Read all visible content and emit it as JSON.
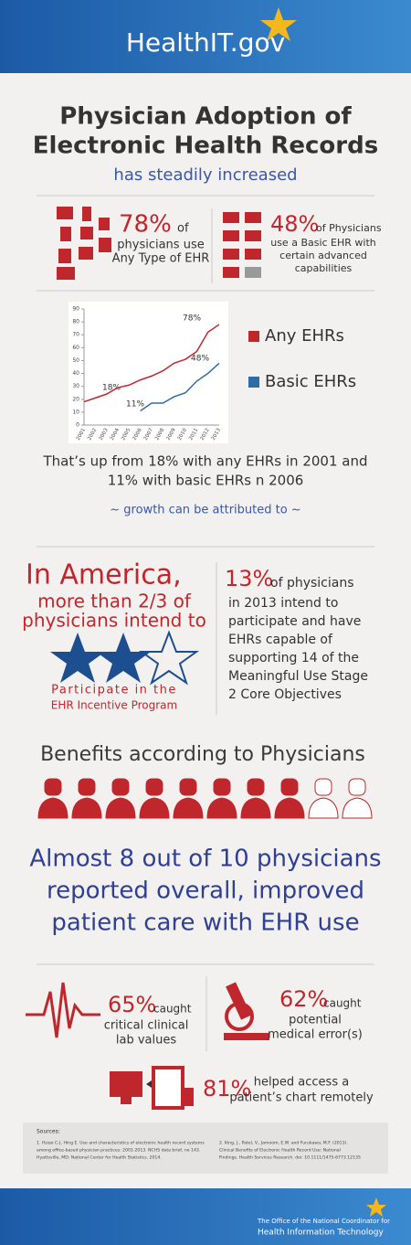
{
  "header": {
    "logo": "HealthIT.gov"
  },
  "title": {
    "lines": [
      "Physician Adoption of",
      "Electronic Health Records"
    ],
    "subtitle": "has steadily increased"
  },
  "stats_top": [
    {
      "percent": "78%",
      "lines": [
        "of",
        "physicians use",
        "Any Type of EHR"
      ]
    },
    {
      "percent": "48%",
      "lines": [
        "of  Physicians",
        "use a Basic EHR with",
        "certain advanced",
        "capabilities"
      ]
    }
  ],
  "chart": {
    "type": "line",
    "categories": [
      "2001",
      "2002",
      "2003",
      "2004",
      "2005",
      "2006",
      "2007",
      "2008",
      "2009",
      "2010",
      "2011",
      "2012",
      "2013"
    ],
    "series": [
      {
        "name": "Any EHRs",
        "color": "#c0272d",
        "values": [
          18,
          21,
          24,
          29,
          31,
          35,
          38,
          42,
          48,
          51,
          57,
          72,
          78
        ]
      },
      {
        "name": "Basic EHRs",
        "color": "#2e6da4",
        "values": [
          null,
          null,
          null,
          null,
          null,
          11,
          17,
          17,
          22,
          25,
          34,
          40,
          48
        ]
      }
    ],
    "ylim": [
      0,
      90
    ],
    "yticks": [
      0,
      10,
      20,
      30,
      40,
      50,
      60,
      70,
      80,
      90
    ],
    "annotations": [
      "18%",
      "78%",
      "11%",
      "48%"
    ]
  },
  "summary": {
    "lines": [
      "That’s up from 18% with any EHRs in 2001 and",
      "11% with basic EHRs n 2006"
    ],
    "attribution": "~ growth can be attributed to ~"
  },
  "intent": {
    "lines": [
      "In America,",
      "more than 2/3 of",
      "physicians intend to",
      "Participate in the",
      "EHR Incentive Program"
    ]
  },
  "stage2": {
    "percent": "13%",
    "lines": [
      "of physicians",
      "in 2013 intend to",
      "participate and have",
      "EHRs capable  of",
      "supporting 14 of the",
      "Meaningful Use Stage",
      "2 Core Objectives"
    ]
  },
  "benefits": {
    "heading": "Benefits according to Physicians",
    "lines": [
      "Almost 8 out of 10 physicians",
      "reported overall, improved",
      "patient care with EHR use"
    ]
  },
  "stats_bottom": [
    {
      "percent": "65%",
      "lines": [
        "caught",
        "critical  clinical",
        "lab values"
      ]
    },
    {
      "percent": "62%",
      "lines": [
        "caught",
        "potential",
        "medical error(s)"
      ]
    },
    {
      "percent": "81%",
      "lines": [
        "helped access a",
        "patient’s chart remotely"
      ]
    }
  ],
  "sources": {
    "heading": "Sources:",
    "items": [
      [
        "1.    Hsiao C-J, Hing E. Use and characteristics of electronic health record systems",
        "among office-based physician practices: 2001-2013. NCHS data brief, no 143.",
        "Hyattsville, MD: National Center for Health Statistics. 2014."
      ],
      [
        "2.    King, J., Patel, V., Jamoom, E.W. and Furukawa, M.F. (2013).",
        "Clinical Benefits of Electronic Health Record Use: National",
        "Findings. Health Services Research. doi: 10.1111/1475-6773.12135"
      ]
    ]
  },
  "footer": {
    "lines": [
      "The Office of the National Coordinator for",
      "Health Information Technology"
    ]
  }
}
